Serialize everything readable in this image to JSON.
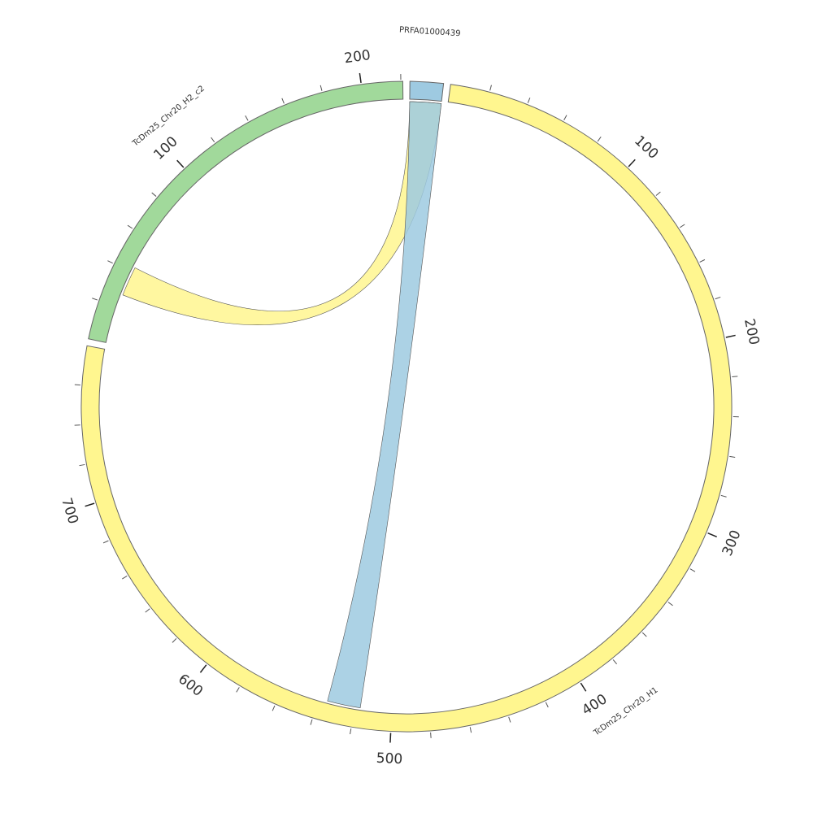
{
  "chart_data": {
    "type": "chord",
    "segments": [
      {
        "name": "PRFA01000439",
        "length": 17,
        "color": "#9ecae1"
      },
      {
        "name": "TcDm25_Chr20_H1",
        "length": 780,
        "color": "#fff68f",
        "ticks": [
          100,
          200,
          300,
          400,
          500,
          600,
          700
        ]
      },
      {
        "name": "TcDm25_Chr20_H2_c2",
        "length": 221,
        "color": "#a1d99b",
        "ticks": [
          100,
          200
        ]
      }
    ],
    "tick_step": 20,
    "links": [
      {
        "source": "PRFA01000439",
        "source_range": [
          0,
          17
        ],
        "target": "TcDm25_Chr20_H2_c2",
        "target_range": [
          27,
          43
        ],
        "color": "#fff68f"
      },
      {
        "source": "PRFA01000439",
        "source_range": [
          0,
          17
        ],
        "target": "TcDm25_Chr20_H1",
        "target_range": [
          517,
          535
        ],
        "color": "#9ecae1"
      }
    ]
  }
}
